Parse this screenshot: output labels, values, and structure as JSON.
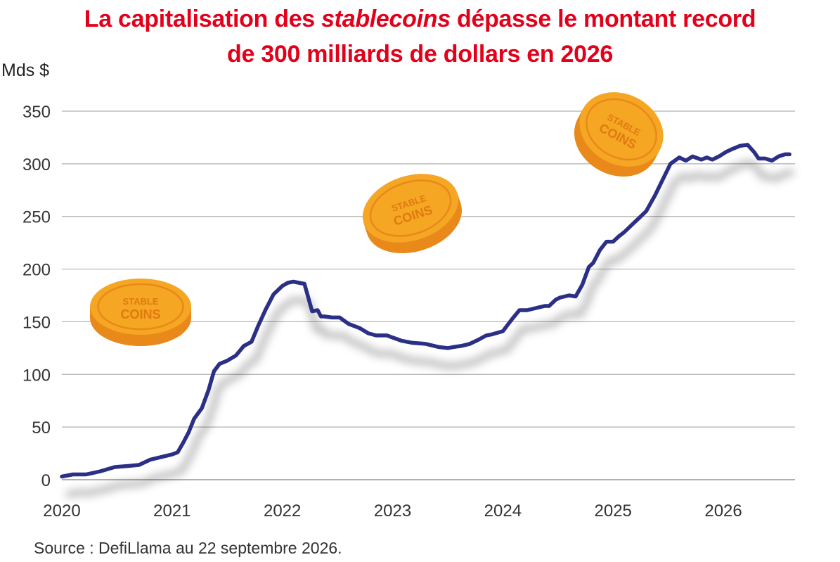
{
  "title": {
    "line1_before": "La capitalisation des ",
    "line1_italic": "stablecoins",
    "line1_after": " dépasse le montant record",
    "line2": "de 300 milliards de dollars en 2026"
  },
  "source": "Source : DefiLlama au 22 septembre 2026.",
  "colors": {
    "title": "#e2001a",
    "line": "#2b2f86",
    "grid": "#b0b0b0",
    "coin": "#f5a623"
  },
  "coin_label": {
    "top": "STABLE",
    "bottom": "COINS"
  },
  "chart_data": {
    "type": "line",
    "ylabel": "Mds $",
    "ylim": [
      0,
      350
    ],
    "xlim": [
      2020,
      2026.65
    ],
    "yticks": [
      "0",
      "50",
      "100",
      "150",
      "200",
      "250",
      "300",
      "350"
    ],
    "xticks": [
      "2020",
      "2021",
      "2022",
      "2023",
      "2024",
      "2025",
      "2026"
    ],
    "grid": true,
    "series": [
      {
        "x": [
          2020.0,
          2020.1,
          2020.22,
          2020.35,
          2020.48,
          2020.6,
          2020.7,
          2020.8,
          2020.92,
          2021.0,
          2021.05,
          2021.1,
          2021.15,
          2021.2,
          2021.27,
          2021.33,
          2021.38,
          2021.43,
          2021.5,
          2021.58,
          2021.65,
          2021.72,
          2021.78,
          2021.85,
          2021.92,
          2022.0,
          2022.05,
          2022.1,
          2022.15,
          2022.2,
          2022.27,
          2022.32,
          2022.35,
          2022.38,
          2022.45,
          2022.52,
          2022.6,
          2022.7,
          2022.78,
          2022.85,
          2022.95,
          2023.0,
          2023.08,
          2023.18,
          2023.3,
          2023.42,
          2023.5,
          2023.55,
          2023.62,
          2023.7,
          2023.78,
          2023.85,
          2023.9,
          2024.0,
          2024.08,
          2024.15,
          2024.22,
          2024.3,
          2024.38,
          2024.42,
          2024.48,
          2024.52,
          2024.6,
          2024.66,
          2024.72,
          2024.78,
          2024.82,
          2024.88,
          2024.94,
          2025.0,
          2025.05,
          2025.1,
          2025.18,
          2025.24,
          2025.3,
          2025.38,
          2025.45,
          2025.52,
          2025.6,
          2025.66,
          2025.72,
          2025.8,
          2025.85,
          2025.9,
          2025.96,
          2026.02,
          2026.08,
          2026.15,
          2026.22,
          2026.28,
          2026.32,
          2026.38,
          2026.44,
          2026.5,
          2026.56,
          2026.6
        ],
        "values": [
          3,
          5,
          5,
          8,
          12,
          13,
          14,
          19,
          22,
          24,
          26,
          35,
          45,
          58,
          68,
          85,
          103,
          110,
          113,
          118,
          127,
          131,
          146,
          162,
          176,
          184,
          187,
          188,
          187,
          186,
          160,
          161,
          155,
          155,
          154,
          154,
          148,
          144,
          139,
          137,
          137,
          135,
          132,
          130,
          129,
          126,
          125,
          126,
          127,
          129,
          133,
          137,
          138,
          141,
          152,
          161,
          161,
          163,
          165,
          165,
          171,
          173,
          175,
          174,
          185,
          202,
          206,
          218,
          226,
          226,
          231,
          235,
          243,
          249,
          255,
          270,
          285,
          300,
          306,
          303,
          307,
          304,
          306,
          304,
          307,
          311,
          314,
          317,
          318,
          311,
          305,
          305,
          303,
          307,
          309,
          309
        ]
      }
    ]
  }
}
